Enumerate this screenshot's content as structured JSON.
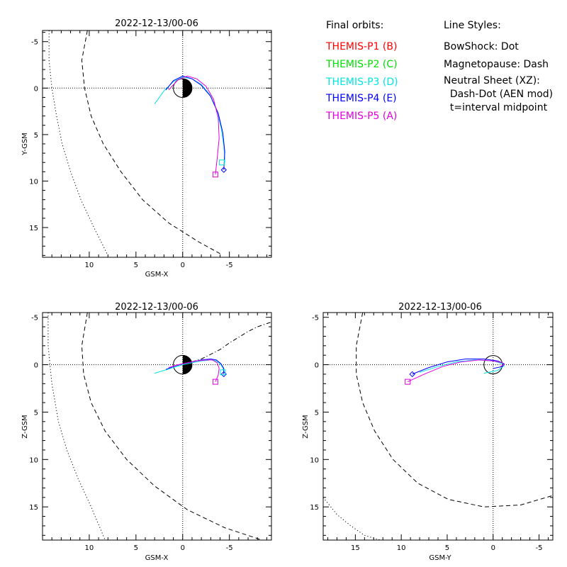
{
  "legend": {
    "orbits_title": "Final orbits:",
    "probes": [
      {
        "label": "THEMIS-P1 (B)",
        "color": "#ff0000"
      },
      {
        "label": "THEMIS-P2 (C)",
        "color": "#00e000"
      },
      {
        "label": "THEMIS-P3 (D)",
        "color": "#00e5e5"
      },
      {
        "label": "THEMIS-P4 (E)",
        "color": "#0000ff"
      },
      {
        "label": "THEMIS-P5 (A)",
        "color": "#e000e0"
      }
    ],
    "styles_title": "Line Styles:",
    "styles": [
      "BowShock: Dot",
      "Magnetopause: Dash",
      "Neutral Sheet (XZ):",
      "  Dash-Dot (AEN mod)",
      "  t=interval midpoint"
    ]
  },
  "chart_data": [
    {
      "type": "line",
      "id": "xy",
      "title": "2022-12-13/00-06",
      "xlabel": "GSM-X",
      "ylabel": "Y-GSM",
      "xlim": [
        15,
        -9.5
      ],
      "ylim": [
        -6.2,
        18.2
      ],
      "xticks": [
        10,
        5,
        0,
        -5
      ],
      "xtick_labels": [
        "10",
        "5",
        "0",
        "-5"
      ],
      "yticks": [
        -5,
        0,
        5,
        10,
        15
      ],
      "ytick_labels": [
        "-5",
        "0",
        "5",
        "10",
        "15"
      ],
      "earth": "sun-facing-white",
      "boundaries": [
        {
          "name": "bowshock",
          "style": "dot",
          "x": [
            14.3,
            14.3,
            14.0,
            13.5,
            12.9,
            12.0,
            10.9,
            9.5,
            8.0
          ],
          "y": [
            -6.2,
            -3.0,
            0.0,
            3.0,
            6.0,
            9.0,
            12.0,
            15.0,
            18.0
          ]
        },
        {
          "name": "magnetopause",
          "style": "dash",
          "x": [
            10.2,
            10.8,
            10.5,
            9.8,
            8.5,
            6.6,
            4.3,
            1.5,
            -1.8,
            -4.0
          ],
          "y": [
            -6.2,
            -3.0,
            0.0,
            3.0,
            6.0,
            9.0,
            12.0,
            14.5,
            16.6,
            17.8
          ]
        }
      ],
      "series": [
        {
          "color": "#00e5e5",
          "x": [
            3.0,
            2.0,
            1.0,
            0.0,
            -1.0,
            -2.0,
            -2.9,
            -3.6,
            -4.1,
            -4.4,
            -4.5,
            -4.5
          ],
          "y": [
            1.7,
            0.3,
            -0.7,
            -1.2,
            -1.0,
            -0.4,
            0.7,
            2.3,
            4.2,
            6.2,
            7.5,
            8.0
          ]
        },
        {
          "color": "#0000ff",
          "x": [
            1.8,
            1.0,
            0.0,
            -1.0,
            -2.0,
            -3.0,
            -3.8,
            -4.3,
            -4.5,
            -4.4
          ],
          "y": [
            0.2,
            -0.8,
            -1.3,
            -1.0,
            -0.3,
            0.9,
            2.7,
            4.8,
            6.8,
            8.8
          ]
        },
        {
          "color": "#e000e0",
          "x": [
            1.5,
            0.5,
            -0.5,
            -1.5,
            -2.5,
            -3.3,
            -3.8,
            -3.9,
            -3.7,
            -3.5
          ],
          "y": [
            0.2,
            -0.9,
            -1.3,
            -1.0,
            -0.2,
            1.2,
            3.2,
            5.4,
            7.5,
            9.3
          ]
        }
      ],
      "markers": [
        {
          "color": "#0000ff",
          "shape": "diamond",
          "x": -4.4,
          "y": 8.8
        },
        {
          "color": "#e000e0",
          "shape": "square",
          "x": -3.5,
          "y": 9.3
        },
        {
          "color": "#00e5e5",
          "shape": "square",
          "x": -4.2,
          "y": 8.0
        }
      ]
    },
    {
      "type": "line",
      "id": "xz",
      "title": "2022-12-13/00-06",
      "xlabel": "GSM-X",
      "ylabel": "Z-GSM",
      "xlim": [
        15,
        -9.5
      ],
      "ylim": [
        -5.5,
        18.5
      ],
      "xticks": [
        10,
        5,
        0,
        -5
      ],
      "xtick_labels": [
        "10",
        "5",
        "0",
        "-5"
      ],
      "yticks": [
        -5,
        0,
        5,
        10,
        15
      ],
      "ytick_labels": [
        "-5",
        "0",
        "5",
        "10",
        "15"
      ],
      "earth": "sun-facing-white",
      "boundaries": [
        {
          "name": "bowshock",
          "style": "dot",
          "x": [
            14.4,
            14.4,
            14.0,
            13.3,
            12.4,
            11.2,
            9.8,
            8.3
          ],
          "y": [
            -5.5,
            -2.0,
            2.0,
            6.0,
            9.0,
            12.0,
            15.0,
            18.5
          ]
        },
        {
          "name": "magnetopause",
          "style": "dash",
          "x": [
            10.2,
            10.8,
            10.6,
            9.8,
            8.3,
            6.0,
            3.0,
            -0.5,
            -4.5,
            -8.5
          ],
          "y": [
            -5.5,
            -2.0,
            1.0,
            4.0,
            7.0,
            10.0,
            12.8,
            15.3,
            17.2,
            18.5
          ]
        },
        {
          "name": "neutral-sheet",
          "style": "dash-dot",
          "x": [
            0.0,
            -1.0,
            -2.0,
            -3.0,
            -4.0,
            -5.0,
            -6.0,
            -7.0,
            -8.0,
            -9.5
          ],
          "y": [
            -0.1,
            -0.3,
            -0.6,
            -1.1,
            -1.6,
            -2.3,
            -2.9,
            -3.5,
            -4.0,
            -4.5
          ]
        }
      ],
      "series": [
        {
          "color": "#00e5e5",
          "x": [
            3.0,
            2.0,
            1.0,
            0.0,
            -1.0,
            -2.0,
            -3.0,
            -3.6,
            -4.0,
            -4.3,
            -4.4
          ],
          "y": [
            0.9,
            0.6,
            0.3,
            0.0,
            -0.2,
            -0.4,
            -0.5,
            -0.4,
            -0.1,
            0.3,
            0.8
          ]
        },
        {
          "color": "#0000ff",
          "x": [
            1.8,
            1.0,
            0.0,
            -1.0,
            -2.0,
            -3.0,
            -3.6,
            -4.1,
            -4.4,
            -4.4
          ],
          "y": [
            0.5,
            0.2,
            -0.1,
            -0.3,
            -0.5,
            -0.6,
            -0.5,
            -0.1,
            0.4,
            1.0
          ]
        },
        {
          "color": "#e000e0",
          "x": [
            1.5,
            0.5,
            -0.5,
            -1.5,
            -2.5,
            -3.2,
            -3.7,
            -3.9,
            -3.8,
            -3.5
          ],
          "y": [
            0.3,
            0.0,
            -0.2,
            -0.4,
            -0.5,
            -0.5,
            -0.2,
            0.4,
            1.1,
            1.8
          ]
        }
      ],
      "markers": [
        {
          "color": "#0000ff",
          "shape": "diamond",
          "x": -4.4,
          "y": 1.0
        },
        {
          "color": "#e000e0",
          "shape": "square",
          "x": -3.5,
          "y": 1.8
        },
        {
          "color": "#00e5e5",
          "shape": "square",
          "x": -4.3,
          "y": 0.8
        }
      ]
    },
    {
      "type": "line",
      "id": "yz",
      "title": "2022-12-13/00-06",
      "xlabel": "GSM-Y",
      "ylabel": "Z-GSM",
      "xlim": [
        18.5,
        -6.5
      ],
      "ylim": [
        -5.5,
        18.5
      ],
      "xticks": [
        15,
        10,
        5,
        0,
        -5
      ],
      "xtick_labels": [
        "15",
        "10",
        "5",
        "0",
        "-5"
      ],
      "yticks": [
        -5,
        0,
        5,
        10,
        15
      ],
      "ytick_labels": [
        "-5",
        "0",
        "5",
        "10",
        "15"
      ],
      "earth": "circle",
      "boundaries": [
        {
          "name": "bowshock",
          "style": "dot",
          "x": [
            18.5,
            17.0,
            15.5,
            14.0,
            12.3
          ],
          "y": [
            14.0,
            15.8,
            17.0,
            18.0,
            18.5
          ]
        },
        {
          "name": "magnetopause",
          "style": "dash",
          "x": [
            14.2,
            14.9,
            14.9,
            14.2,
            12.9,
            10.9,
            8.2,
            4.9,
            1.0,
            -3.0,
            -6.5
          ],
          "y": [
            -5.5,
            -2.0,
            1.0,
            4.0,
            7.0,
            10.0,
            12.5,
            14.2,
            15.0,
            14.8,
            13.8
          ]
        }
      ],
      "series": [
        {
          "color": "#00e5e5",
          "x": [
            8.0,
            6.0,
            4.0,
            2.0,
            0.0,
            -1.0,
            -1.2,
            -0.5,
            1.0
          ],
          "y": [
            0.8,
            0.2,
            -0.3,
            -0.5,
            -0.4,
            -0.1,
            0.1,
            0.6,
            0.9
          ]
        },
        {
          "color": "#0000ff",
          "x": [
            8.8,
            7.0,
            5.0,
            3.0,
            1.0,
            -0.5,
            -1.2,
            -1.0,
            0.0
          ],
          "y": [
            1.0,
            0.3,
            -0.3,
            -0.6,
            -0.6,
            -0.4,
            -0.1,
            0.2,
            0.4
          ]
        },
        {
          "color": "#e000e0",
          "x": [
            9.3,
            7.5,
            5.5,
            3.5,
            1.5,
            0.0,
            -1.0,
            -1.2,
            -0.8
          ],
          "y": [
            1.8,
            1.0,
            0.2,
            -0.3,
            -0.5,
            -0.4,
            -0.2,
            0.0,
            0.2
          ]
        }
      ],
      "markers": [
        {
          "color": "#0000ff",
          "shape": "diamond",
          "x": 8.8,
          "y": 1.0
        },
        {
          "color": "#e000e0",
          "shape": "square",
          "x": 9.3,
          "y": 1.8
        }
      ]
    }
  ]
}
